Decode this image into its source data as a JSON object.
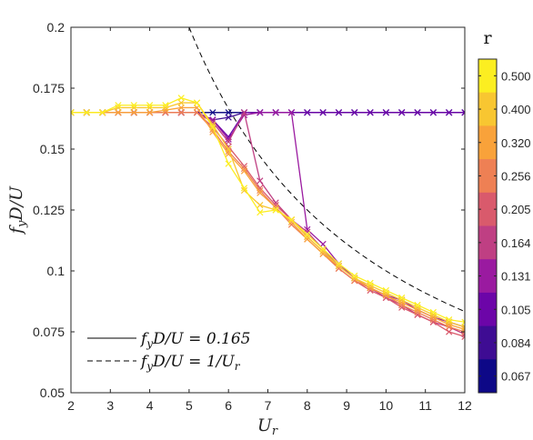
{
  "chart_data": {
    "type": "line",
    "xlabel": "U_r",
    "ylabel": "f_y D / U",
    "xlim": [
      2,
      12
    ],
    "ylim": [
      0.05,
      0.2
    ],
    "xticks": [
      "2",
      "3",
      "4",
      "5",
      "6",
      "7",
      "8",
      "9",
      "10",
      "11",
      "12"
    ],
    "yticks": [
      "0.05",
      "0.075",
      "0.1",
      "0.125",
      "0.15",
      "0.175",
      "0.2"
    ],
    "legend": {
      "placement": "bottom-left",
      "entries": [
        {
          "label": "f_y D / U = 0.165",
          "style": "solid",
          "color": "#000000"
        },
        {
          "label": "f_y D / U = 1/U_r",
          "style": "dashed",
          "color": "#000000"
        }
      ]
    },
    "reference_lines": {
      "constant": 0.165,
      "hyperbola_xmin": 5.0
    },
    "colorbar": {
      "title": "r",
      "labels": [
        "0.500",
        "0.400",
        "0.320",
        "0.256",
        "0.205",
        "0.164",
        "0.131",
        "0.105",
        "0.084",
        "0.067"
      ],
      "colors": [
        "#fcee21",
        "#f8c631",
        "#f9a23a",
        "#ee8054",
        "#d95a6c",
        "#bf3f83",
        "#9a1aa0",
        "#6c05a8",
        "#3e0c93",
        "#0d0887"
      ]
    },
    "x": [
      2.0,
      2.4,
      2.8,
      3.2,
      3.6,
      4.0,
      4.4,
      4.8,
      5.2,
      5.6,
      6.0,
      6.4,
      6.8,
      7.2,
      7.6,
      8.0,
      8.4,
      8.8,
      9.2,
      9.6,
      10.0,
      10.4,
      10.8,
      11.2,
      11.6,
      12.0
    ],
    "series": [
      {
        "r": "0.067",
        "color": "#0d0887",
        "values": [
          0.165,
          0.165,
          0.165,
          0.165,
          0.165,
          0.165,
          0.165,
          0.165,
          0.165,
          0.165,
          0.165,
          0.165,
          0.165,
          0.165,
          0.165,
          0.165,
          0.165,
          0.165,
          0.165,
          0.165,
          0.165,
          0.165,
          0.165,
          0.165,
          0.165,
          0.165
        ]
      },
      {
        "r": "0.084",
        "color": "#3e0c93",
        "values": [
          0.165,
          0.165,
          0.165,
          0.165,
          0.165,
          0.165,
          0.165,
          0.165,
          0.165,
          0.162,
          0.163,
          0.165,
          0.165,
          0.165,
          0.165,
          0.165,
          0.165,
          0.165,
          0.165,
          0.165,
          0.165,
          0.165,
          0.165,
          0.165,
          0.165,
          0.165
        ]
      },
      {
        "r": "0.105",
        "color": "#6c05a8",
        "values": [
          0.165,
          0.165,
          0.165,
          0.165,
          0.165,
          0.165,
          0.165,
          0.165,
          0.165,
          0.162,
          0.155,
          0.165,
          0.165,
          0.165,
          0.165,
          0.165,
          0.165,
          0.165,
          0.165,
          0.165,
          0.165,
          0.165,
          0.165,
          0.165,
          0.165,
          0.165
        ]
      },
      {
        "r": "0.131",
        "color": "#9a1aa0",
        "values": [
          0.165,
          0.165,
          0.165,
          0.165,
          0.165,
          0.165,
          0.165,
          0.165,
          0.165,
          0.162,
          0.154,
          0.164,
          0.165,
          0.165,
          0.165,
          0.117,
          0.111,
          0.103,
          0.097,
          0.093,
          0.09,
          0.088,
          0.084,
          0.081,
          0.079,
          0.077
        ]
      },
      {
        "r": "0.164",
        "color": "#bf3f83",
        "values": [
          0.165,
          0.165,
          0.165,
          0.165,
          0.165,
          0.165,
          0.165,
          0.165,
          0.165,
          0.161,
          0.153,
          0.165,
          0.137,
          0.128,
          0.121,
          0.116,
          0.109,
          0.102,
          0.097,
          0.093,
          0.089,
          0.086,
          0.082,
          0.079,
          0.077,
          0.074
        ]
      },
      {
        "r": "0.205",
        "color": "#d95a6c",
        "values": [
          0.165,
          0.165,
          0.165,
          0.165,
          0.165,
          0.165,
          0.165,
          0.165,
          0.165,
          0.159,
          0.151,
          0.143,
          0.134,
          0.127,
          0.121,
          0.114,
          0.108,
          0.101,
          0.096,
          0.092,
          0.089,
          0.085,
          0.082,
          0.079,
          0.075,
          0.073
        ]
      },
      {
        "r": "0.256",
        "color": "#ee8054",
        "values": [
          0.165,
          0.165,
          0.165,
          0.165,
          0.165,
          0.165,
          0.165,
          0.165,
          0.165,
          0.158,
          0.149,
          0.142,
          0.133,
          0.126,
          0.119,
          0.113,
          0.107,
          0.101,
          0.096,
          0.093,
          0.09,
          0.086,
          0.083,
          0.08,
          0.077,
          0.075
        ]
      },
      {
        "r": "0.320",
        "color": "#f9a23a",
        "values": [
          0.165,
          0.165,
          0.165,
          0.165,
          0.165,
          0.165,
          0.166,
          0.167,
          0.167,
          0.157,
          0.148,
          0.141,
          0.132,
          0.126,
          0.12,
          0.113,
          0.107,
          0.102,
          0.097,
          0.093,
          0.09,
          0.087,
          0.084,
          0.081,
          0.078,
          0.076
        ]
      },
      {
        "r": "0.400",
        "color": "#f8c631",
        "values": [
          0.165,
          0.165,
          0.165,
          0.167,
          0.167,
          0.167,
          0.167,
          0.169,
          0.169,
          0.16,
          0.15,
          0.133,
          0.127,
          0.125,
          0.121,
          0.114,
          0.108,
          0.102,
          0.097,
          0.094,
          0.091,
          0.088,
          0.085,
          0.082,
          0.079,
          0.077
        ]
      },
      {
        "r": "0.500",
        "color": "#fcee21",
        "values": [
          0.165,
          0.165,
          0.165,
          0.168,
          0.168,
          0.168,
          0.168,
          0.171,
          0.169,
          0.159,
          0.144,
          0.134,
          0.124,
          0.125,
          0.121,
          0.115,
          0.109,
          0.103,
          0.098,
          0.095,
          0.092,
          0.089,
          0.086,
          0.083,
          0.08,
          0.079
        ]
      }
    ]
  }
}
